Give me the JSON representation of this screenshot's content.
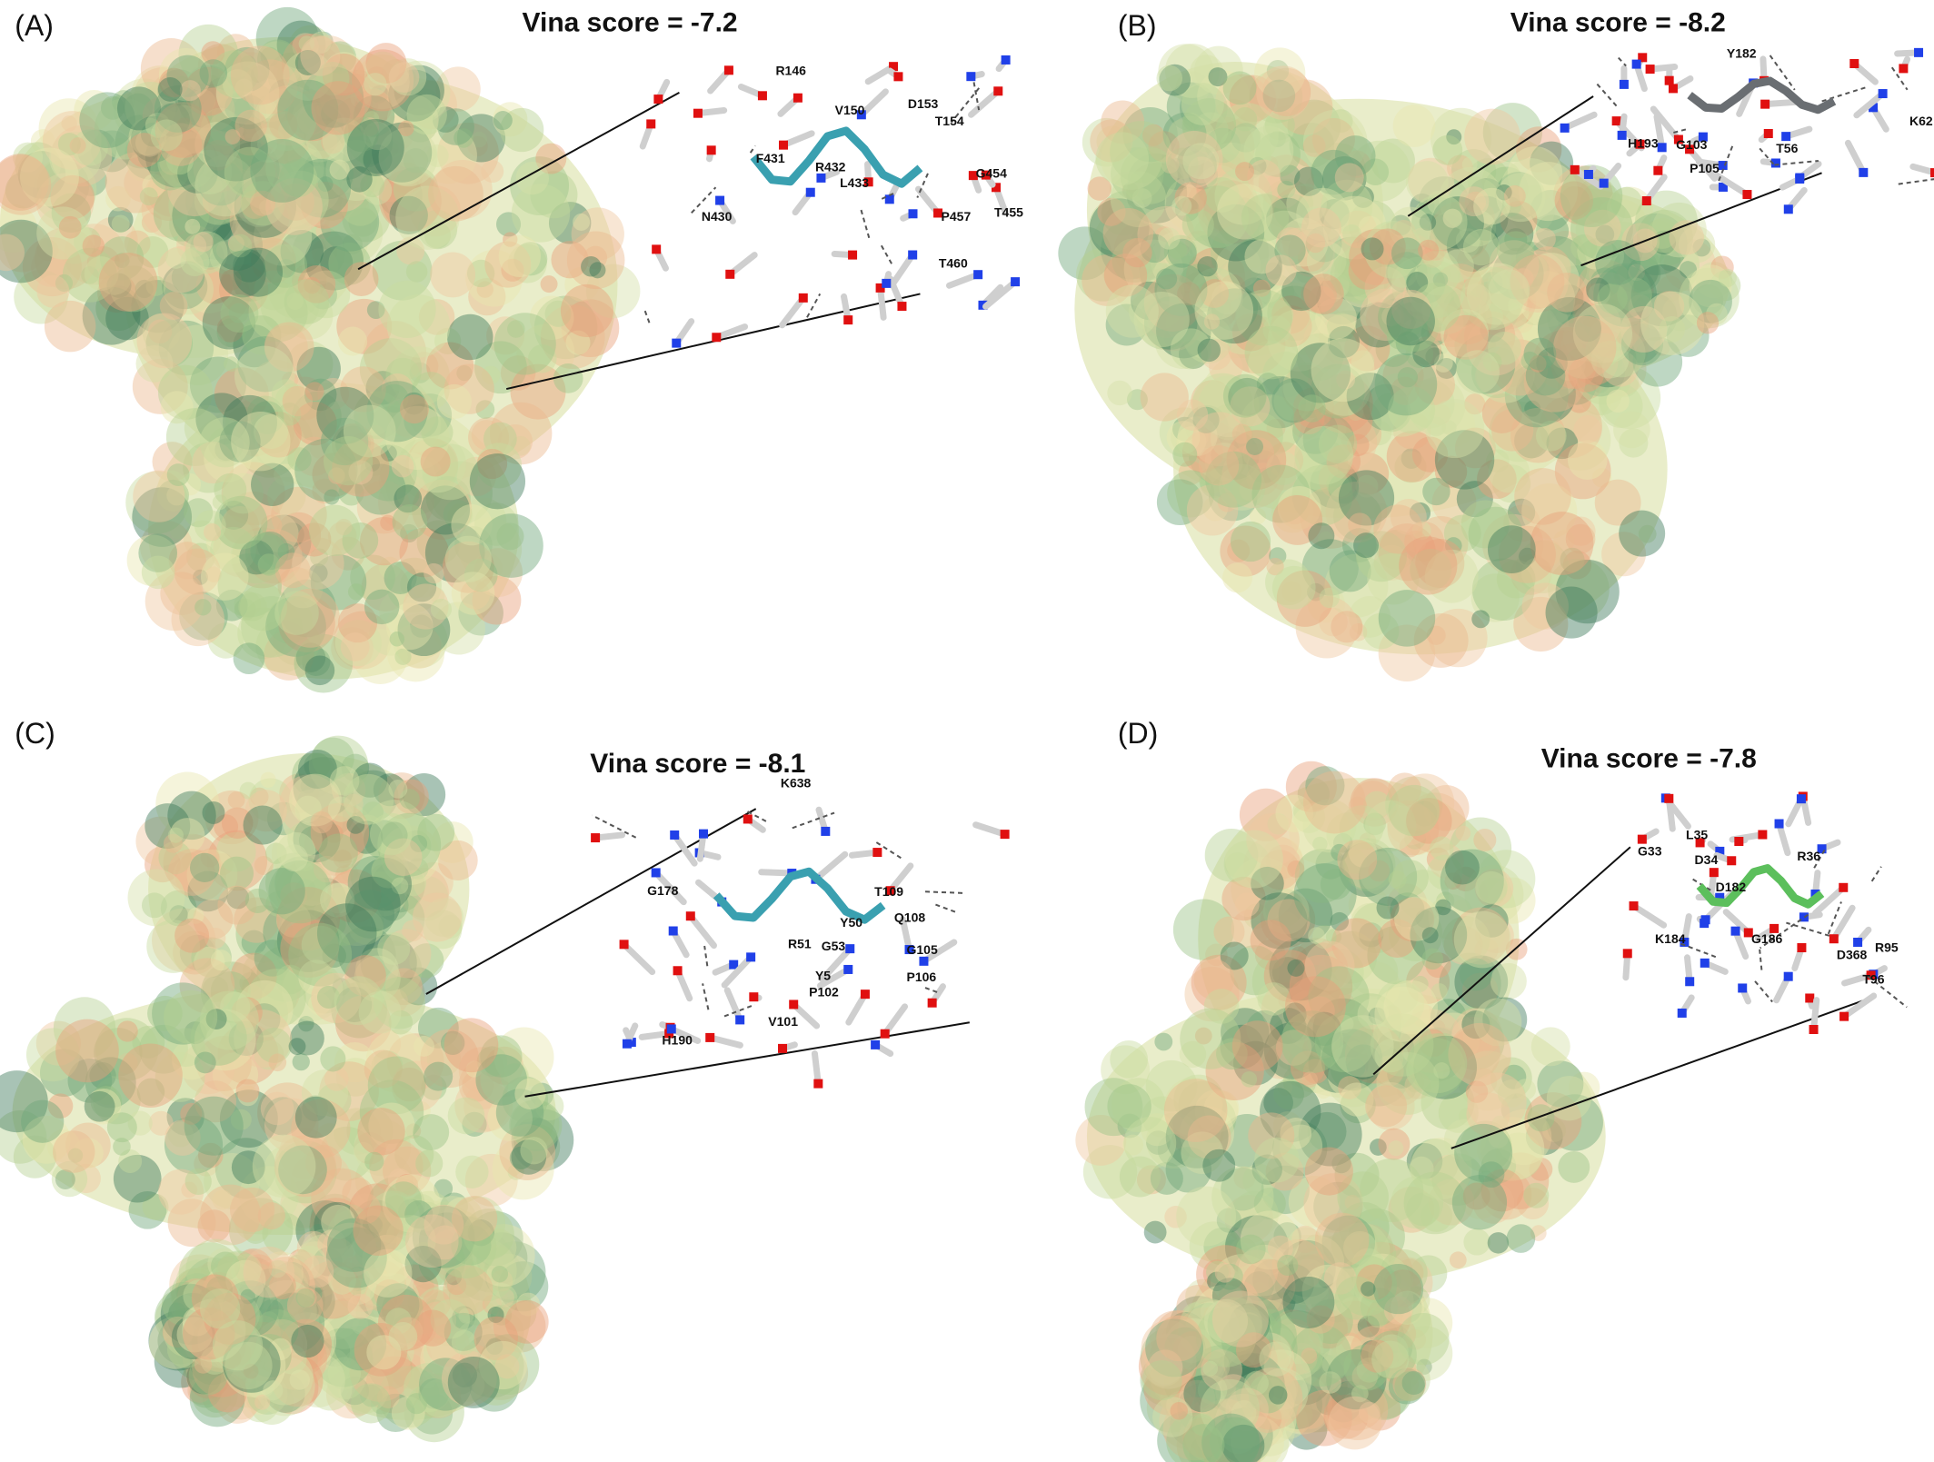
{
  "panels": [
    {
      "label": "(A)",
      "score": "Vina score = -7.2",
      "residues": [
        "R146",
        "V150",
        "D153",
        "T154",
        "F431",
        "R432",
        "L433",
        "N430",
        "G454",
        "T455",
        "P457",
        "T460"
      ]
    },
    {
      "label": "(B)",
      "score": "Vina score = -8.2",
      "residues": [
        "Y182",
        "H193",
        "K62",
        "T56",
        "P105",
        "G103"
      ]
    },
    {
      "label": "(C)",
      "score": "Vina score = -8.1",
      "residues": [
        "K638",
        "G178",
        "T109",
        "Y50",
        "Q108",
        "R51",
        "G53",
        "G105",
        "Y5",
        "P102",
        "V101",
        "H190",
        "P106"
      ]
    },
    {
      "label": "(D)",
      "score": "Vina score = -7.8",
      "residues": [
        "L35",
        "G33",
        "R36",
        "D34",
        "D182",
        "K184",
        "G186",
        "D368",
        "R95",
        "T96"
      ]
    }
  ]
}
